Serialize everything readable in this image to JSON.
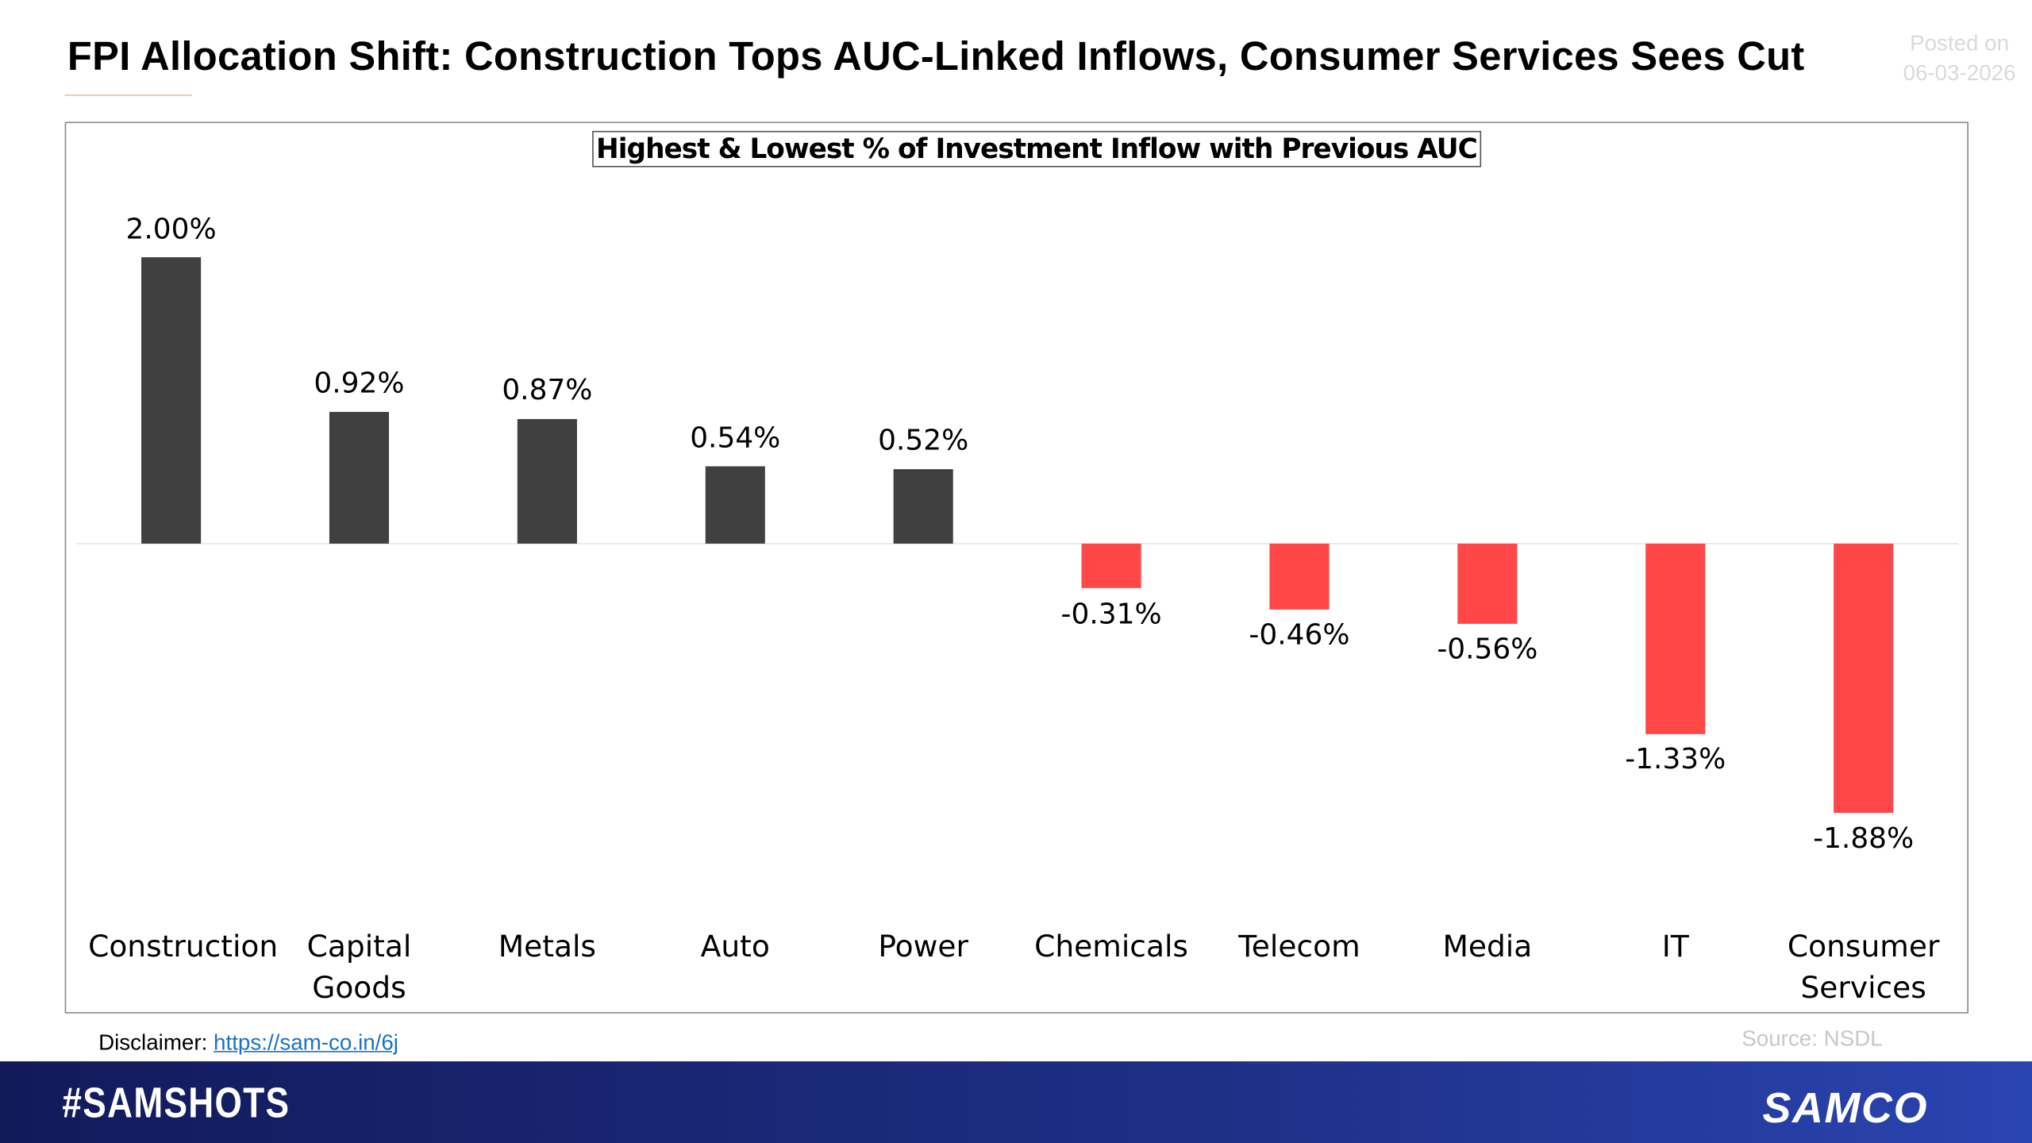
{
  "header": {
    "title": "FPI Allocation Shift: Construction Tops AUC-Linked Inflows, Consumer Services Sees Cut",
    "posted_label": "Posted on",
    "posted_date": "06-03-2026"
  },
  "chart_data": {
    "type": "bar",
    "title": "Highest & Lowest % of Investment Inflow with Previous AUC",
    "categories": [
      "Construction",
      "Capital Goods",
      "Metals",
      "Auto",
      "Power",
      "Chemicals",
      "Telecom",
      "Media",
      "IT",
      "Consumer Services"
    ],
    "values": [
      2.0,
      0.92,
      0.87,
      0.54,
      0.52,
      -0.31,
      -0.46,
      -0.56,
      -1.33,
      -1.88
    ],
    "value_labels": [
      "2.00%",
      "0.92%",
      "0.87%",
      "0.54%",
      "0.52%",
      "-0.31%",
      "-0.46%",
      "-0.56%",
      "-1.33%",
      "-1.88%"
    ],
    "color_positive": "#404040",
    "color_negative": "#ff4747"
  },
  "footer": {
    "disclaimer_label": "Disclaimer:",
    "disclaimer_link": "https://sam-co.in/6j",
    "source": "Source: NSDL",
    "hashtag": "#SAMSHOTS",
    "brand": "SAMCO"
  }
}
